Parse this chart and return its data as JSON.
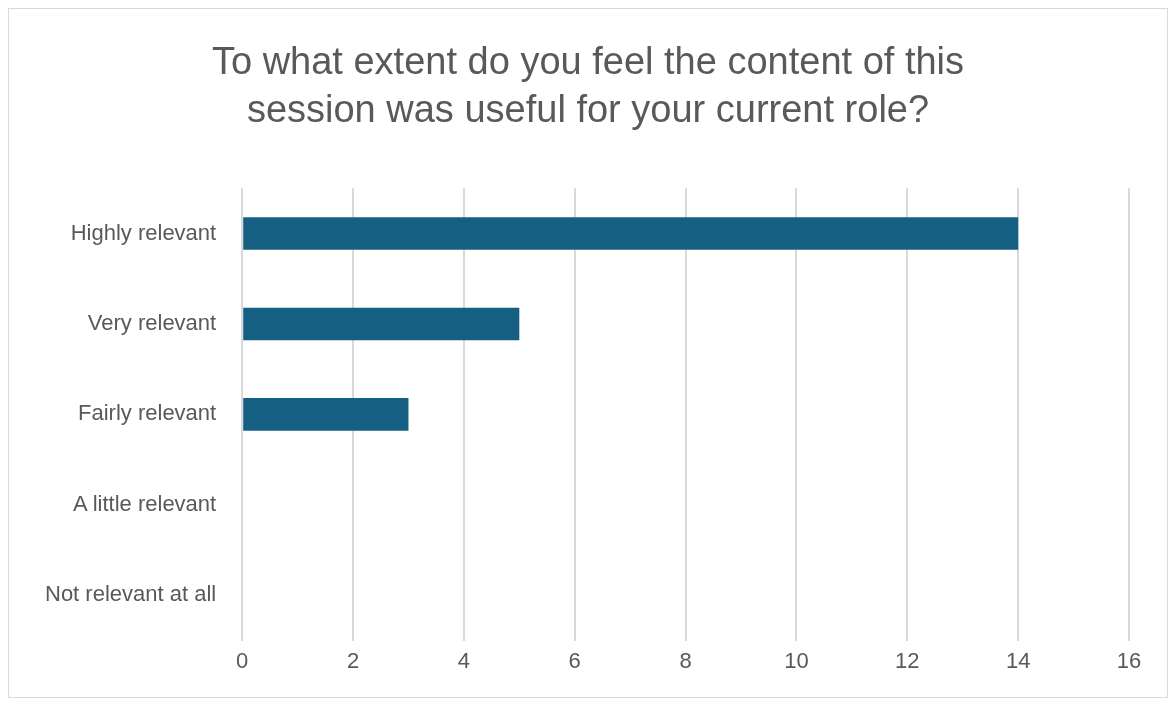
{
  "chart_data": {
    "type": "bar",
    "orientation": "horizontal",
    "title": "To what extent do you feel the content of this session was useful for your current role?",
    "categories": [
      "Highly relevant",
      "Very relevant",
      "Fairly relevant",
      "A little relevant",
      "Not relevant at all"
    ],
    "values": [
      14,
      5,
      3,
      0,
      0
    ],
    "color": "#156082",
    "xlim": [
      0,
      16
    ],
    "xticks": [
      0,
      2,
      4,
      6,
      8,
      10,
      12,
      14,
      16
    ],
    "grid": "x",
    "legend": false
  }
}
